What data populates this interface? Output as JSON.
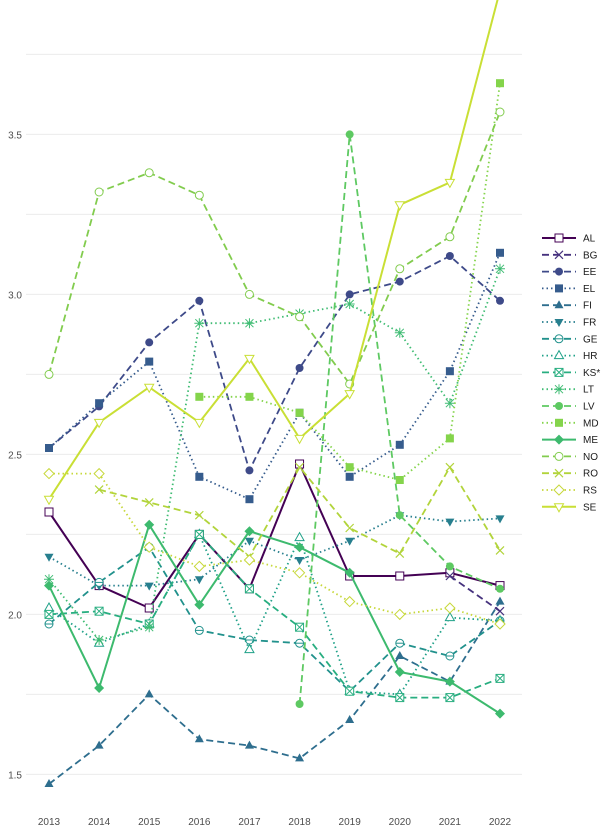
{
  "chart_data": {
    "type": "line",
    "title": "",
    "xlabel": "",
    "ylabel": "",
    "x": [
      2013,
      2014,
      2015,
      2016,
      2017,
      2018,
      2019,
      2020,
      2021,
      2022
    ],
    "xlim": [
      2013,
      2022
    ],
    "ylim": [
      1.42,
      3.92
    ],
    "yticks": [
      1.5,
      2.0,
      2.5,
      3.0,
      3.5
    ],
    "grid": true,
    "legend_position": "right",
    "series": [
      {
        "name": "AL",
        "color": "#440154",
        "dash": "solid",
        "marker": "square-open",
        "values": [
          2.32,
          2.09,
          2.02,
          2.25,
          2.08,
          2.47,
          2.12,
          2.12,
          2.13,
          2.09
        ]
      },
      {
        "name": "BG",
        "color": "#46327e",
        "dash": "dashed",
        "marker": "x",
        "values": [
          null,
          null,
          null,
          null,
          null,
          null,
          null,
          null,
          2.12,
          2.01
        ]
      },
      {
        "name": "EE",
        "color": "#3e4a89",
        "dash": "dashed",
        "marker": "circle",
        "values": [
          2.52,
          2.65,
          2.85,
          2.98,
          2.45,
          2.77,
          3.0,
          3.04,
          3.12,
          2.98
        ]
      },
      {
        "name": "EL",
        "color": "#365c8d",
        "dash": "dotted",
        "marker": "square",
        "values": [
          2.52,
          2.66,
          2.79,
          2.43,
          2.36,
          2.63,
          2.43,
          2.53,
          2.76,
          3.13
        ]
      },
      {
        "name": "FI",
        "color": "#2e6e8e",
        "dash": "dashed",
        "marker": "triangle",
        "values": [
          1.47,
          1.59,
          1.75,
          1.61,
          1.59,
          1.55,
          1.67,
          1.87,
          1.79,
          2.04
        ]
      },
      {
        "name": "FR",
        "color": "#277f8e",
        "dash": "dotted",
        "marker": "triangle-down",
        "values": [
          2.18,
          2.09,
          2.09,
          2.11,
          2.23,
          2.17,
          2.23,
          2.31,
          2.29,
          2.3
        ]
      },
      {
        "name": "GE",
        "color": "#21918c",
        "dash": "dashed",
        "marker": "circle-half",
        "values": [
          1.97,
          2.1,
          2.21,
          1.95,
          1.92,
          1.91,
          1.76,
          1.91,
          1.87,
          1.98
        ]
      },
      {
        "name": "HR",
        "color": "#1fa188",
        "dash": "dotted",
        "marker": "triangle-open",
        "values": [
          2.02,
          1.91,
          1.97,
          2.25,
          1.89,
          2.24,
          1.76,
          1.75,
          1.99,
          1.98
        ]
      },
      {
        "name": "KS*",
        "color": "#28ae80",
        "dash": "dashed",
        "marker": "square-x",
        "values": [
          2.0,
          2.01,
          1.97,
          2.25,
          2.08,
          1.96,
          1.76,
          1.74,
          1.74,
          1.8
        ]
      },
      {
        "name": "LT",
        "color": "#3fbc73",
        "dash": "dotted",
        "marker": "asterisk",
        "values": [
          2.11,
          1.92,
          1.96,
          2.91,
          2.91,
          2.94,
          2.97,
          2.88,
          2.66,
          3.08
        ]
      },
      {
        "name": "LV",
        "color": "#5ec962",
        "dash": "dashed",
        "marker": "circle",
        "values": [
          null,
          null,
          null,
          null,
          null,
          1.72,
          3.5,
          2.31,
          2.15,
          2.08
        ]
      },
      {
        "name": "MD",
        "color": "#84d44b",
        "dash": "dotted",
        "marker": "square",
        "values": [
          null,
          null,
          null,
          2.68,
          2.68,
          2.63,
          2.46,
          2.42,
          2.55,
          3.66
        ]
      },
      {
        "name": "ME",
        "color": "#3dba6e",
        "dash": "solid",
        "marker": "diamond",
        "values": [
          2.09,
          1.77,
          2.28,
          2.03,
          2.26,
          2.21,
          2.13,
          1.82,
          1.79,
          1.69
        ]
      },
      {
        "name": "NO",
        "color": "#82cc4e",
        "dash": "dashed",
        "marker": "circle-open",
        "values": [
          2.75,
          3.32,
          3.38,
          3.31,
          3.0,
          2.93,
          2.72,
          3.08,
          3.18,
          3.57
        ]
      },
      {
        "name": "RO",
        "color": "#b2d43b",
        "dash": "dashed",
        "marker": "x",
        "values": [
          null,
          2.39,
          2.35,
          2.31,
          2.18,
          2.46,
          2.27,
          2.19,
          2.46,
          2.2
        ]
      },
      {
        "name": "RS",
        "color": "#c7d83b",
        "dash": "dotted",
        "marker": "diamond-open",
        "values": [
          2.44,
          2.44,
          2.21,
          2.15,
          2.17,
          2.13,
          2.04,
          2.0,
          2.02,
          1.97
        ]
      },
      {
        "name": "SE",
        "color": "#c9df35",
        "dash": "solid",
        "marker": "triangle-down-open",
        "values": [
          2.36,
          2.6,
          2.71,
          2.6,
          2.8,
          2.55,
          2.69,
          3.28,
          3.35,
          3.95
        ]
      }
    ]
  }
}
